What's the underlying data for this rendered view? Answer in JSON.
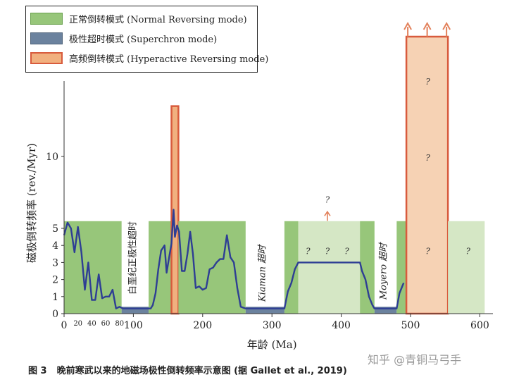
{
  "chart_data": {
    "type": "area",
    "xlabel": "年龄 (Ma)",
    "ylabel": "磁极倒转频率 (rev./Myr)",
    "xlim": [
      0,
      620
    ],
    "ylim": [
      0,
      15
    ],
    "y_axis_break": "non-linear scale: 0–5 compressed, 5–15 expanded",
    "x_ticks": [
      0,
      100,
      200,
      300,
      400,
      500,
      600
    ],
    "x_minor_ticks": [
      "20",
      "40",
      "60",
      "80"
    ],
    "y_ticks": [
      "0",
      "1",
      "2",
      "3",
      "4",
      "5",
      "10"
    ],
    "legend": [
      {
        "key": "normal",
        "label": "正常倒转模式 (Normal Reversing mode)",
        "color": "#97c67a"
      },
      {
        "key": "superchron",
        "label": "极性超时模式 (Superchron mode)",
        "color": "#6b829e"
      },
      {
        "key": "hyperactive",
        "label": "高频倒转模式 (Hyperactive Reversing mode)",
        "color": "#f1b07f"
      }
    ],
    "legend_position": "top-left",
    "regimes": [
      {
        "mode": "normal",
        "x0": 0,
        "x1": 83,
        "level": 5.5
      },
      {
        "mode": "superchron",
        "x0": 83,
        "x1": 122,
        "level": 0.4
      },
      {
        "mode": "normal",
        "x0": 122,
        "x1": 155,
        "level": 5.5
      },
      {
        "mode": "hyperactive",
        "x0": 155,
        "x1": 165,
        "level": 13.5
      },
      {
        "mode": "normal",
        "x0": 165,
        "x1": 262,
        "level": 5.5
      },
      {
        "mode": "superchron",
        "x0": 262,
        "x1": 318,
        "level": 0.4
      },
      {
        "mode": "normal",
        "x0": 318,
        "x1": 338,
        "level": 5.5
      },
      {
        "mode": "normal-uncertain",
        "x0": 338,
        "x1": 427,
        "level": 5.5
      },
      {
        "mode": "normal",
        "x0": 427,
        "x1": 448,
        "level": 5.5
      },
      {
        "mode": "superchron",
        "x0": 448,
        "x1": 480,
        "level": 0.4
      },
      {
        "mode": "normal",
        "x0": 480,
        "x1": 494,
        "level": 5.5
      },
      {
        "mode": "hyperactive",
        "x0": 494,
        "x1": 554,
        "level": 17
      },
      {
        "mode": "normal-uncertain",
        "x0": 554,
        "x1": 607,
        "level": 5.5
      }
    ],
    "series": [
      {
        "x": [
          0,
          5,
          10,
          15,
          20,
          25,
          30,
          35,
          40,
          45,
          50,
          55,
          60,
          65,
          70,
          75,
          80,
          85,
          88,
          122,
          125,
          128,
          132,
          136,
          140,
          145,
          148,
          152,
          155,
          158,
          160,
          163,
          166,
          170,
          174,
          178,
          182,
          186,
          190,
          195,
          200,
          205,
          210,
          215,
          220,
          225,
          230,
          235,
          240,
          245,
          250,
          255,
          262,
          318,
          323,
          328,
          333,
          338,
          427,
          430,
          435,
          440,
          445,
          448,
          480,
          484,
          490
        ],
        "values": [
          4.6,
          5.4,
          5.0,
          3.6,
          5.1,
          3.6,
          1.4,
          3.0,
          0.8,
          0.8,
          2.3,
          0.9,
          1.0,
          1.0,
          1.4,
          0.3,
          0.4,
          0.3,
          0.3,
          0.3,
          0.3,
          0.5,
          1.2,
          2.6,
          3.7,
          4.0,
          2.4,
          3.4,
          4.1,
          6.3,
          4.5,
          5.2,
          4.8,
          2.5,
          2.5,
          3.5,
          4.8,
          3.5,
          1.5,
          1.6,
          1.4,
          1.5,
          2.6,
          2.7,
          3.0,
          3.2,
          3.2,
          4.6,
          3.3,
          3.0,
          1.5,
          0.4,
          0.3,
          0.3,
          1.3,
          1.8,
          2.6,
          3.0,
          3.0,
          2.5,
          2.0,
          1.0,
          0.5,
          0.3,
          0.3,
          1.2,
          1.8
        ]
      }
    ],
    "annotations": {
      "superchron_cretaceous": "白垩纪正极性超时",
      "kiaman": "Kiaman 超时",
      "moyero": "Moyero 超时",
      "question_mark": "?"
    },
    "question_marks": [
      {
        "x": 352,
        "y": 3.5
      },
      {
        "x": 380,
        "y": 3.5
      },
      {
        "x": 408,
        "y": 3.5
      },
      {
        "x": 380,
        "y": 6.8
      },
      {
        "x": 525,
        "y": 3.5
      },
      {
        "x": 525,
        "y": 9.7
      },
      {
        "x": 525,
        "y": 15
      },
      {
        "x": 583,
        "y": 3.5
      }
    ],
    "colors": {
      "normal_fill": "#97c67a",
      "normal_uncertain_fill": "#d5e7c5",
      "superchron_fill": "#6b829e",
      "hyperactive_fill": "#f1b07f",
      "hyperactive_uncertain_fill": "#f6d2b4",
      "hyperactive_border": "#d85b3d",
      "curve": "#2e3e94",
      "arrow": "#e2805a",
      "axis": "#333333"
    }
  },
  "caption": {
    "figure_no": "图 3",
    "text": "晚前寒武以来的地磁场极性倒转频率示意图 (据 Gallet et al., 2019)"
  },
  "watermark": "知乎 @青铜马弓手"
}
